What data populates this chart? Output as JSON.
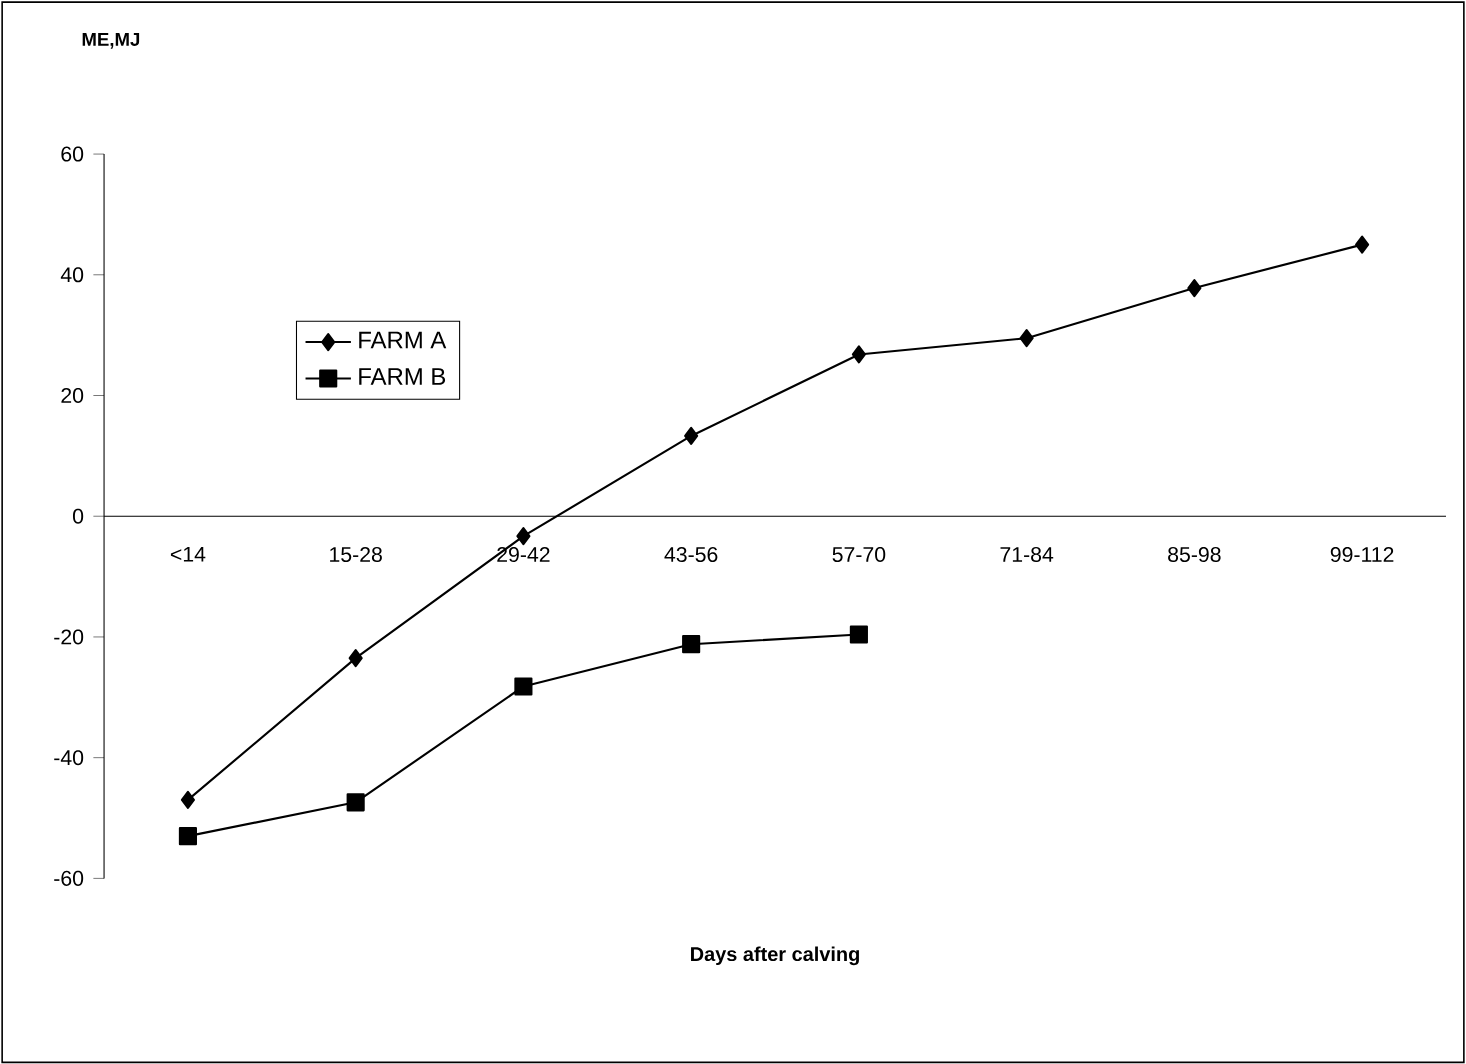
{
  "chart_data": {
    "type": "line",
    "title": "ME,MJ",
    "xlabel": "Days after calving",
    "categories": [
      "<14",
      "15-28",
      "29-42",
      "43-56",
      "57-70",
      "71-84",
      "85-98",
      "99-112"
    ],
    "series": [
      {
        "name": "FARM A",
        "color": "#000000",
        "marker": "diamond",
        "values": [
          -47,
          -23.5,
          -3.3,
          13.3,
          26.8,
          29.5,
          37.8,
          45
        ]
      },
      {
        "name": "FARM B",
        "color": "#000000",
        "marker": "square",
        "values": [
          -53,
          -47.4,
          -28.2,
          -21.2,
          -19.6,
          null,
          null,
          null
        ]
      }
    ],
    "ylim": [
      -60,
      60
    ],
    "yticks": [
      -60,
      -40,
      -20,
      0,
      20,
      40,
      60
    ],
    "legend": "top left",
    "grid": false,
    "line_style": "solid"
  }
}
